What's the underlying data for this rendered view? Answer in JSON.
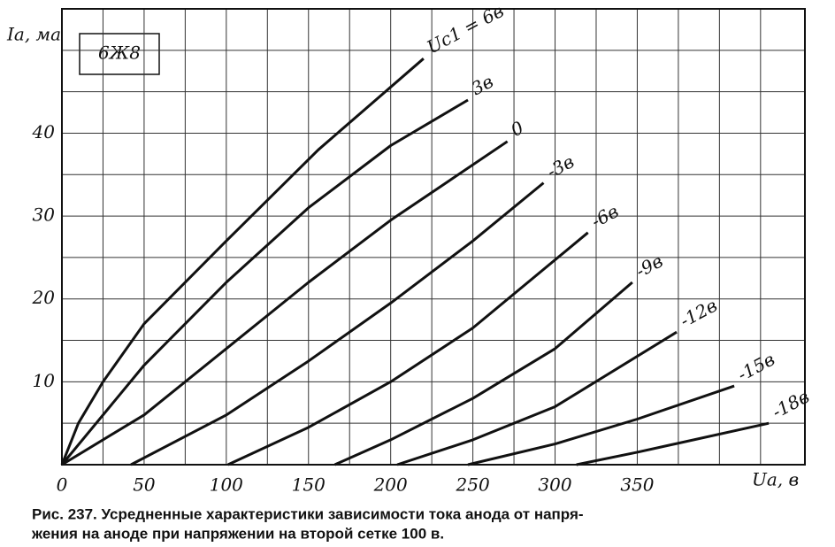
{
  "chart_data": {
    "type": "line",
    "badge": "6Ж8",
    "ylabel": "Iа, ма",
    "xlabel": "Uа, в",
    "caption": [
      "Рис. 237. Усредненные характеристики зависимости тока анода от напря-",
      "жения на аноде при напряжении на второй сетке 100 в."
    ],
    "xlim": [
      0,
      452
    ],
    "ylim": [
      0,
      55
    ],
    "xticks": [
      0,
      50,
      100,
      150,
      200,
      250,
      300,
      350
    ],
    "xminorticks": [
      25,
      75,
      125,
      175,
      225,
      275,
      325,
      375,
      400,
      425
    ],
    "yticks": [
      10,
      20,
      30,
      40
    ],
    "yminorticks": [
      5,
      15,
      25,
      35,
      45,
      50
    ],
    "grid": true,
    "color": "#111111",
    "series": [
      {
        "name": "Uc1 = 6в",
        "x": [
          0,
          10,
          25,
          50,
          100,
          156,
          220
        ],
        "values": [
          0,
          5,
          10,
          17,
          27,
          38,
          49
        ]
      },
      {
        "name": "3в",
        "x": [
          0,
          50,
          100,
          150,
          200,
          247
        ],
        "values": [
          0,
          12,
          22,
          31,
          38.5,
          44
        ]
      },
      {
        "name": "0",
        "x": [
          0,
          50,
          100,
          150,
          200,
          271
        ],
        "values": [
          0,
          6,
          14,
          22,
          29.5,
          39
        ]
      },
      {
        "name": "-3в",
        "x": [
          42,
          100,
          150,
          200,
          250,
          293
        ],
        "values": [
          0,
          6,
          12.5,
          19.5,
          27,
          34
        ]
      },
      {
        "name": "-6в",
        "x": [
          101,
          150,
          200,
          250,
          320
        ],
        "values": [
          0,
          4.5,
          10,
          16.5,
          28
        ]
      },
      {
        "name": "-9в",
        "x": [
          166,
          200,
          250,
          300,
          347
        ],
        "values": [
          0,
          3,
          8,
          14,
          22
        ]
      },
      {
        "name": "-12в",
        "x": [
          204,
          250,
          300,
          374
        ],
        "values": [
          0,
          3,
          7,
          16
        ]
      },
      {
        "name": "-15в",
        "x": [
          247,
          300,
          350,
          409
        ],
        "values": [
          0,
          2.5,
          5.5,
          9.5
        ]
      },
      {
        "name": "-18в",
        "x": [
          313,
          350,
          430
        ],
        "values": [
          0,
          1.5,
          5
        ]
      }
    ]
  }
}
